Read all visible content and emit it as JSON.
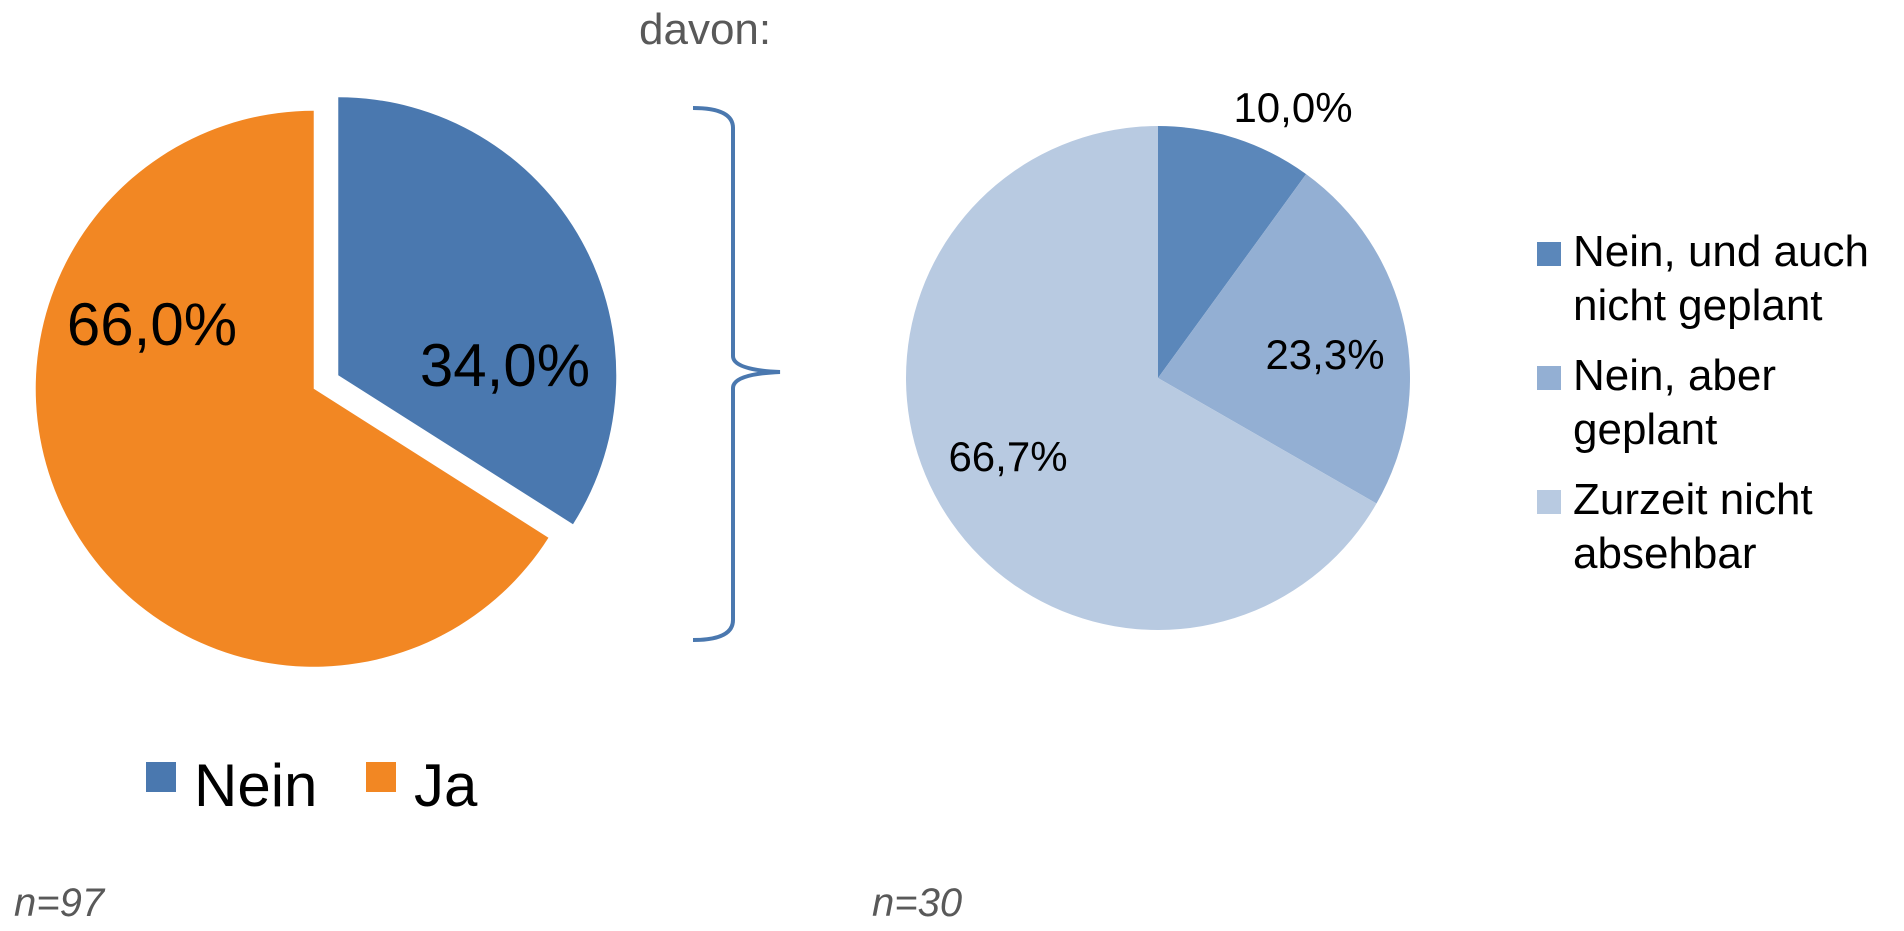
{
  "header": {
    "davon_label": "davon:"
  },
  "colors": {
    "nein": "#4A78AF",
    "ja": "#F28723",
    "nein_nicht_geplant": "#5B87BA",
    "nein_geplant": "#93AFD3",
    "zurzeit_nicht_absehbar": "#B8CAE1",
    "bracket": "#4A78AF"
  },
  "chart_data": [
    {
      "type": "pie",
      "categories": [
        "Nein",
        "Ja"
      ],
      "values": [
        34.0,
        66.0
      ],
      "data_labels": [
        "34,0%",
        "66,0%"
      ],
      "legend": {
        "position": "bottom",
        "entries": [
          "Nein",
          "Ja"
        ]
      },
      "note": "n=97"
    },
    {
      "type": "pie",
      "categories": [
        "Nein, und auch nicht geplant",
        "Nein, aber geplant",
        "Zurzeit nicht absehbar"
      ],
      "values": [
        10.0,
        23.3,
        66.7
      ],
      "data_labels": [
        "10,0%",
        "23,3%",
        "66,7%"
      ],
      "legend": {
        "position": "right",
        "entries": [
          [
            "Nein, und auch",
            "nicht geplant"
          ],
          [
            "Nein, aber",
            "geplant"
          ],
          [
            "Zurzeit nicht",
            "absehbar"
          ]
        ]
      },
      "note": "n=30"
    }
  ]
}
